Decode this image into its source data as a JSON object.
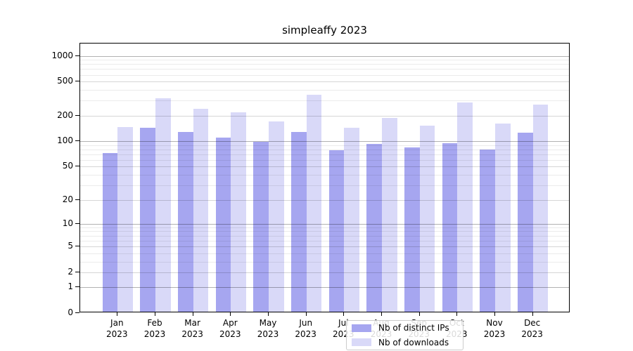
{
  "figure": {
    "title": "simpleaffy 2023"
  },
  "chart_data": {
    "type": "bar",
    "title": "simpleaffy 2023",
    "categories": [
      "Jan",
      "Feb",
      "Mar",
      "Apr",
      "May",
      "Jun",
      "Jul",
      "Aug",
      "Sep",
      "Oct",
      "Nov",
      "Dec"
    ],
    "year_label": "2023",
    "series": [
      {
        "name": "Nb of distinct IPs",
        "color": "#a6a6f0",
        "values": [
          70,
          138,
          123,
          107,
          94,
          124,
          76,
          89,
          81,
          91,
          77,
          121
        ]
      },
      {
        "name": "Nb of downloads",
        "color": "#d9d9f8",
        "values": [
          141,
          305,
          231,
          210,
          163,
          340,
          139,
          180,
          146,
          272,
          155,
          257
        ]
      }
    ],
    "yscale": "log1p",
    "ylim": [
      0,
      1390
    ],
    "yticks_labeled": [
      0,
      1,
      2,
      5,
      10,
      20,
      50,
      100,
      200,
      500,
      1000
    ],
    "yticks_major": [
      1,
      10,
      100,
      1000
    ],
    "yticks_mid": [
      2,
      5,
      20,
      50,
      200,
      500
    ],
    "yticks_minor": [
      3,
      4,
      6,
      7,
      8,
      9,
      30,
      40,
      60,
      70,
      80,
      90,
      300,
      400,
      600,
      700,
      800,
      900
    ],
    "grid": true,
    "legend_position": "lower center"
  },
  "colors": {
    "background": "#ffffff",
    "spine": "#000000",
    "bar_distinct_ips": "#a6a6f0",
    "bar_downloads": "#d9d9f8",
    "grid_major": "#b3b3b3",
    "grid_mid": "#d6d6d6",
    "grid_minor": "#ebebeb",
    "legend_border": "#cccccc"
  }
}
